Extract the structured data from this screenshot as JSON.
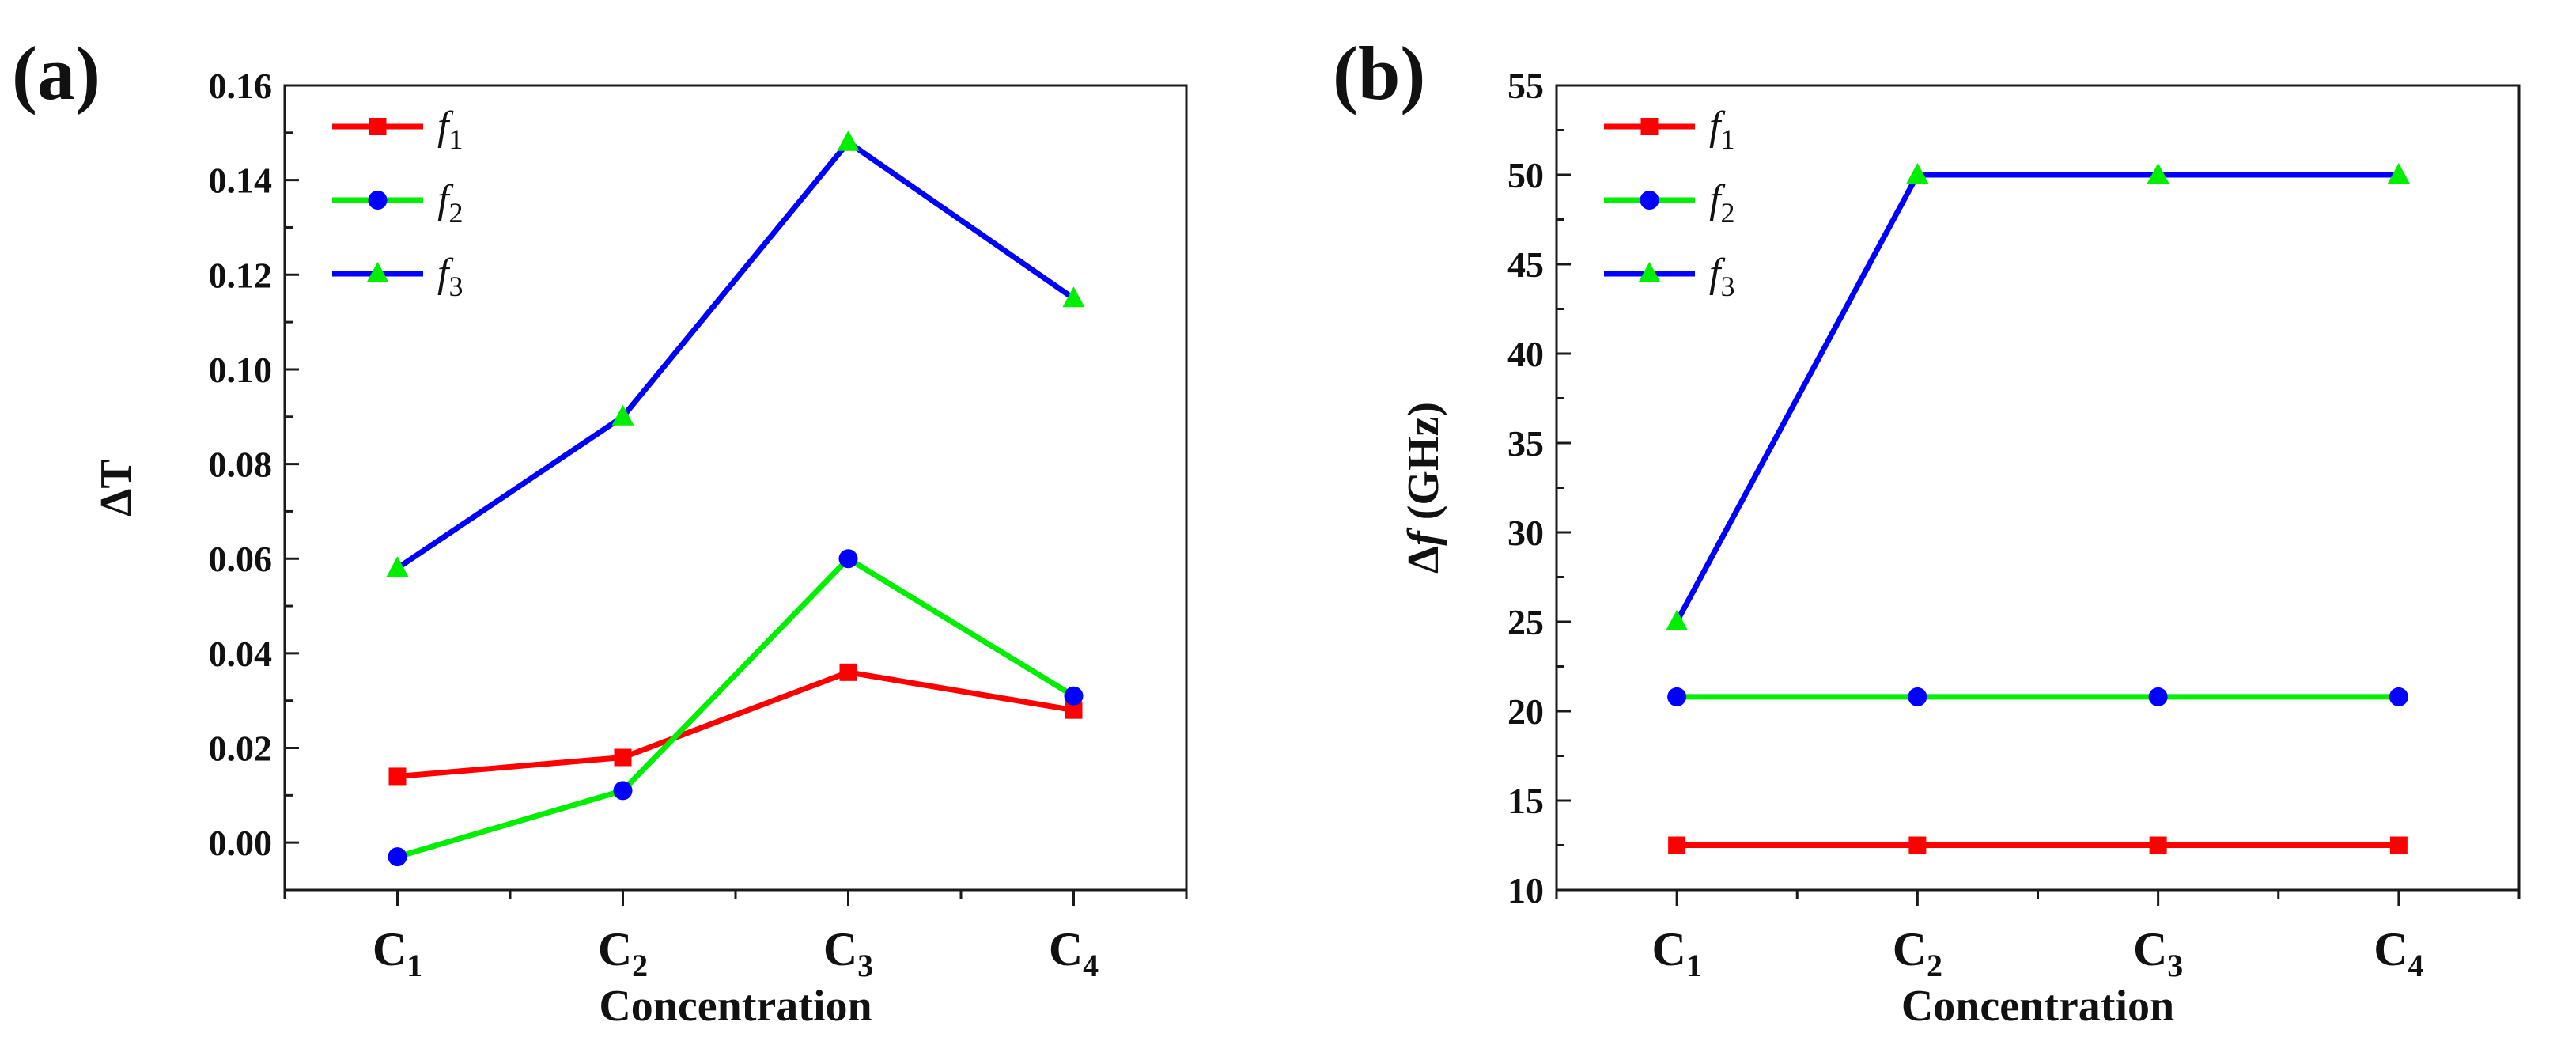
{
  "chart_data": [
    {
      "panel_label": "(a)",
      "type": "line",
      "xlabel": "Concentration",
      "ylabel": "ΔT",
      "categories": [
        {
          "main": "C",
          "sub": "1"
        },
        {
          "main": "C",
          "sub": "2"
        },
        {
          "main": "C",
          "sub": "3"
        },
        {
          "main": "C",
          "sub": "4"
        }
      ],
      "ylim": [
        -0.01,
        0.16
      ],
      "yticks": [
        0.0,
        0.02,
        0.04,
        0.06,
        0.08,
        0.1,
        0.12,
        0.14,
        0.16
      ],
      "ytick_labels": [
        "0.00",
        "0.02",
        "0.04",
        "0.06",
        "0.08",
        "0.10",
        "0.12",
        "0.14",
        "0.16"
      ],
      "legend_position": "top-left",
      "series": [
        {
          "name": "f",
          "sub": "1",
          "line_color": "#ff0000",
          "marker": "square",
          "marker_color": "#ff0000",
          "values": [
            0.014,
            0.018,
            0.036,
            0.028
          ]
        },
        {
          "name": "f",
          "sub": "2",
          "line_color": "#00ee00",
          "marker": "circle",
          "marker_color": "#0000ff",
          "values": [
            -0.003,
            0.011,
            0.06,
            0.031
          ]
        },
        {
          "name": "f",
          "sub": "3",
          "line_color": "#0000ff",
          "marker": "triangle",
          "marker_color": "#00ee00",
          "values": [
            0.058,
            0.09,
            0.148,
            0.115
          ]
        }
      ]
    },
    {
      "panel_label": "(b)",
      "type": "line",
      "xlabel": "Concentration",
      "ylabel_prefix": "Δ",
      "ylabel_var": "f",
      "ylabel_unit": " (GHz)",
      "categories": [
        {
          "main": "C",
          "sub": "1"
        },
        {
          "main": "C",
          "sub": "2"
        },
        {
          "main": "C",
          "sub": "3"
        },
        {
          "main": "C",
          "sub": "4"
        }
      ],
      "ylim": [
        10,
        55
      ],
      "yticks": [
        10,
        15,
        20,
        25,
        30,
        35,
        40,
        45,
        50,
        55
      ],
      "ytick_labels": [
        "10",
        "15",
        "20",
        "25",
        "30",
        "35",
        "40",
        "45",
        "50",
        "55"
      ],
      "legend_position": "top-left",
      "series": [
        {
          "name": "f",
          "sub": "1",
          "line_color": "#ff0000",
          "marker": "square",
          "marker_color": "#ff0000",
          "values": [
            12.5,
            12.5,
            12.5,
            12.5
          ]
        },
        {
          "name": "f",
          "sub": "2",
          "line_color": "#00ee00",
          "marker": "circle",
          "marker_color": "#0000ff",
          "values": [
            20.8,
            20.8,
            20.8,
            20.8
          ]
        },
        {
          "name": "f",
          "sub": "3",
          "line_color": "#0000ff",
          "marker": "triangle",
          "marker_color": "#00ee00",
          "values": [
            25,
            50,
            50,
            50
          ]
        }
      ]
    }
  ]
}
